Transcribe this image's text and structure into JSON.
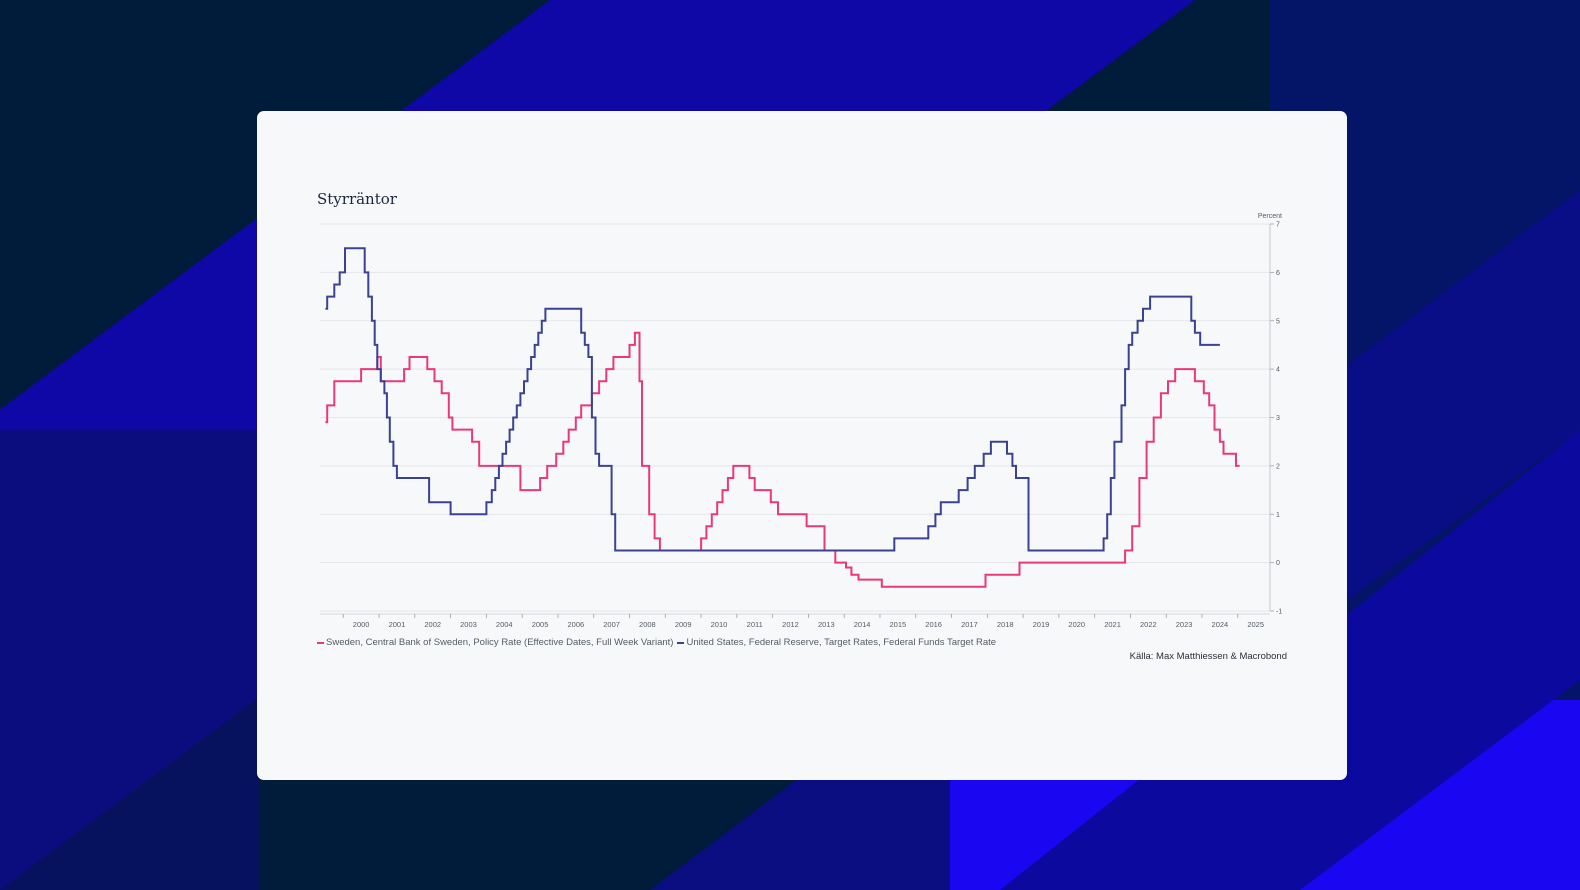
{
  "colors": {
    "sweden": "#e8397a",
    "us": "#3a4291",
    "background": "#011b3a",
    "stripe": "#0f08a6"
  },
  "chart_data": {
    "type": "line",
    "step": true,
    "title": "Styrräntor",
    "ylabel": "Percent",
    "ylim": [
      -1,
      7
    ],
    "yticks": [
      "-1",
      "0",
      "1",
      "2",
      "3",
      "4",
      "5",
      "6",
      "7"
    ],
    "xlim": [
      1999.35,
      2025.9
    ],
    "xticks": [
      "2000",
      "2001",
      "2002",
      "2003",
      "2004",
      "2005",
      "2006",
      "2007",
      "2008",
      "2009",
      "2010",
      "2011",
      "2012",
      "2013",
      "2014",
      "2015",
      "2016",
      "2017",
      "2018",
      "2019",
      "2020",
      "2021",
      "2022",
      "2023",
      "2024",
      "2025"
    ],
    "grid": true,
    "legend_position": "bottom",
    "source": "Källa: Max Matthiessen & Macrobond",
    "series": [
      {
        "name": "Sweden, Central Bank of Sweden, Policy Rate (Effective Dates, Full Week Variant)",
        "color": "#e8397a",
        "points": [
          [
            1999.5,
            2.9
          ],
          [
            1999.55,
            3.25
          ],
          [
            1999.75,
            3.75
          ],
          [
            2000.5,
            4.0
          ],
          [
            2000.95,
            4.25
          ],
          [
            2001.05,
            3.75
          ],
          [
            2001.7,
            4.0
          ],
          [
            2001.85,
            4.25
          ],
          [
            2002.35,
            4.0
          ],
          [
            2002.55,
            3.75
          ],
          [
            2002.75,
            3.5
          ],
          [
            2002.95,
            3.0
          ],
          [
            2003.05,
            2.75
          ],
          [
            2003.6,
            2.5
          ],
          [
            2003.8,
            2.0
          ],
          [
            2004.95,
            1.5
          ],
          [
            2005.5,
            1.75
          ],
          [
            2005.7,
            2.0
          ],
          [
            2005.95,
            2.25
          ],
          [
            2006.15,
            2.5
          ],
          [
            2006.3,
            2.75
          ],
          [
            2006.5,
            3.0
          ],
          [
            2006.65,
            3.25
          ],
          [
            2006.95,
            3.5
          ],
          [
            2007.15,
            3.75
          ],
          [
            2007.35,
            4.0
          ],
          [
            2007.55,
            4.25
          ],
          [
            2008.0,
            4.5
          ],
          [
            2008.15,
            4.75
          ],
          [
            2008.28,
            3.75
          ],
          [
            2008.35,
            2.0
          ],
          [
            2008.55,
            1.0
          ],
          [
            2008.7,
            0.5
          ],
          [
            2008.85,
            0.25
          ],
          [
            2010.0,
            0.5
          ],
          [
            2010.15,
            0.75
          ],
          [
            2010.3,
            1.0
          ],
          [
            2010.45,
            1.25
          ],
          [
            2010.6,
            1.5
          ],
          [
            2010.75,
            1.75
          ],
          [
            2010.9,
            2.0
          ],
          [
            2011.35,
            1.75
          ],
          [
            2011.5,
            1.5
          ],
          [
            2011.95,
            1.25
          ],
          [
            2012.15,
            1.0
          ],
          [
            2012.95,
            0.75
          ],
          [
            2013.45,
            0.25
          ],
          [
            2013.75,
            0.0
          ],
          [
            2014.05,
            -0.1
          ],
          [
            2014.2,
            -0.25
          ],
          [
            2014.4,
            -0.35
          ],
          [
            2015.05,
            -0.5
          ],
          [
            2017.95,
            -0.25
          ],
          [
            2018.9,
            0.0
          ],
          [
            2021.85,
            0.25
          ],
          [
            2022.05,
            0.75
          ],
          [
            2022.25,
            1.75
          ],
          [
            2022.45,
            2.5
          ],
          [
            2022.65,
            3.0
          ],
          [
            2022.85,
            3.5
          ],
          [
            2023.05,
            3.75
          ],
          [
            2023.25,
            4.0
          ],
          [
            2023.8,
            3.75
          ],
          [
            2024.05,
            3.5
          ],
          [
            2024.2,
            3.25
          ],
          [
            2024.35,
            2.75
          ],
          [
            2024.5,
            2.5
          ],
          [
            2024.6,
            2.25
          ],
          [
            2024.95,
            2.0
          ],
          [
            2025.05,
            2.0
          ]
        ]
      },
      {
        "name": "United States, Federal Reserve, Target Rates, Federal Funds Target Rate",
        "color": "#3a4291",
        "points": [
          [
            1999.5,
            5.25
          ],
          [
            1999.55,
            5.5
          ],
          [
            1999.75,
            5.75
          ],
          [
            1999.9,
            6.0
          ],
          [
            2000.05,
            6.5
          ],
          [
            2000.6,
            6.0
          ],
          [
            2000.7,
            5.5
          ],
          [
            2000.8,
            5.0
          ],
          [
            2000.88,
            4.5
          ],
          [
            2000.95,
            4.0
          ],
          [
            2001.05,
            3.75
          ],
          [
            2001.15,
            3.5
          ],
          [
            2001.22,
            3.0
          ],
          [
            2001.3,
            2.5
          ],
          [
            2001.4,
            2.0
          ],
          [
            2001.5,
            1.75
          ],
          [
            2002.4,
            1.25
          ],
          [
            2003.0,
            1.0
          ],
          [
            2004.0,
            1.25
          ],
          [
            2004.15,
            1.5
          ],
          [
            2004.25,
            1.75
          ],
          [
            2004.35,
            2.0
          ],
          [
            2004.45,
            2.25
          ],
          [
            2004.55,
            2.5
          ],
          [
            2004.65,
            2.75
          ],
          [
            2004.75,
            3.0
          ],
          [
            2004.85,
            3.25
          ],
          [
            2004.95,
            3.5
          ],
          [
            2005.05,
            3.75
          ],
          [
            2005.15,
            4.0
          ],
          [
            2005.25,
            4.25
          ],
          [
            2005.35,
            4.5
          ],
          [
            2005.45,
            4.75
          ],
          [
            2005.55,
            5.0
          ],
          [
            2005.65,
            5.25
          ],
          [
            2006.65,
            4.75
          ],
          [
            2006.75,
            4.5
          ],
          [
            2006.85,
            4.25
          ],
          [
            2006.95,
            3.0
          ],
          [
            2007.05,
            2.25
          ],
          [
            2007.15,
            2.0
          ],
          [
            2007.5,
            1.0
          ],
          [
            2007.6,
            0.25
          ],
          [
            2015.4,
            0.5
          ],
          [
            2016.35,
            0.75
          ],
          [
            2016.55,
            1.0
          ],
          [
            2016.7,
            1.25
          ],
          [
            2017.2,
            1.5
          ],
          [
            2017.45,
            1.75
          ],
          [
            2017.65,
            2.0
          ],
          [
            2017.9,
            2.25
          ],
          [
            2018.1,
            2.5
          ],
          [
            2018.55,
            2.25
          ],
          [
            2018.7,
            2.0
          ],
          [
            2018.8,
            1.75
          ],
          [
            2019.15,
            0.25
          ],
          [
            2021.25,
            0.5
          ],
          [
            2021.35,
            1.0
          ],
          [
            2021.45,
            1.75
          ],
          [
            2021.55,
            2.5
          ],
          [
            2021.75,
            3.25
          ],
          [
            2021.85,
            4.0
          ],
          [
            2021.95,
            4.5
          ],
          [
            2022.05,
            4.75
          ],
          [
            2022.2,
            5.0
          ],
          [
            2022.35,
            5.25
          ],
          [
            2022.55,
            5.5
          ],
          [
            2023.7,
            5.0
          ],
          [
            2023.8,
            4.75
          ],
          [
            2023.95,
            4.5
          ],
          [
            2024.5,
            4.5
          ]
        ]
      }
    ]
  }
}
